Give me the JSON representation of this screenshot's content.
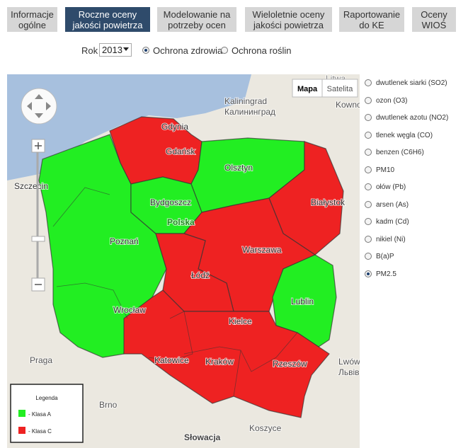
{
  "tabs": [
    {
      "lines": [
        "Informacje",
        "ogólne"
      ]
    },
    {
      "lines": [
        "Roczne oceny",
        "jakości powietrza"
      ]
    },
    {
      "lines": [
        "Modelowanie na",
        "potrzeby ocen"
      ]
    },
    {
      "lines": [
        "Wieloletnie oceny",
        "jakości powietrza"
      ]
    },
    {
      "lines": [
        "Raportowanie",
        "do KE"
      ]
    },
    {
      "lines": [
        "Oceny",
        "WIOŚ"
      ]
    }
  ],
  "controls": {
    "year_label": "Rok",
    "year": "2013",
    "options": [
      "Ochrona zdrowia",
      "Ochrona roślin"
    ]
  },
  "map": {
    "type_buttons": [
      "Mapa",
      "Satelita"
    ],
    "labels": [
      "Litwa",
      "Kaliningrad",
      "Калининград",
      "Kowno",
      "Gdynia",
      "Gdańsk",
      "Olsztyn",
      "Szczecin",
      "Bydgoszcz",
      "Polska",
      "Poznań",
      "Warszawa",
      "Białystok",
      "Łódź",
      "Lublin",
      "Wrocław",
      "Kielce",
      "Katowice",
      "Kraków",
      "Rzeszów",
      "Praga",
      "Brno",
      "Lwów",
      "Львів",
      "Słowacja",
      "Koszyce"
    ],
    "legend": {
      "title": "Legenda",
      "items": [
        "- Klasa A",
        "- Klasa C"
      ]
    }
  },
  "pollutants": [
    "dwutlenek siarki (SO2)",
    "ozon (O3)",
    "dwutlenek azotu (NO2)",
    "tlenek węgla (CO)",
    "benzen (C6H6)",
    "PM10",
    "ołów (Pb)",
    "arsen (As)",
    "kadm (Cd)",
    "nikiel (Ni)",
    "B(a)P",
    "PM2.5"
  ]
}
